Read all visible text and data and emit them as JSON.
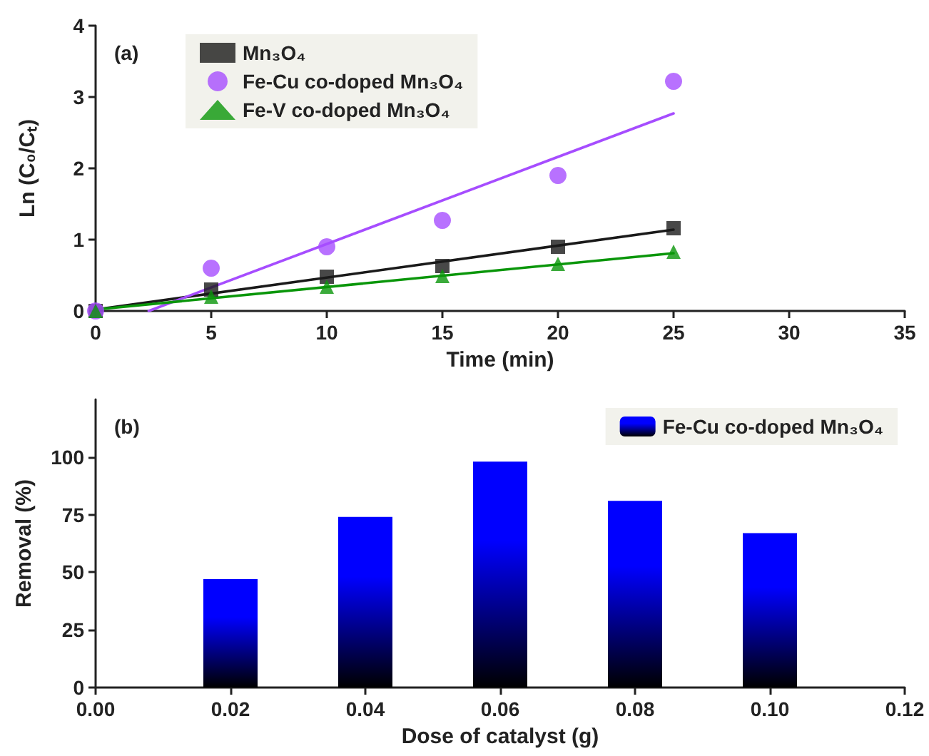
{
  "chart_data": [
    {
      "type": "scatter",
      "xlabel": "Time (min)",
      "ylabel": "Ln (C₀/Cₜ)",
      "annotations": [
        "(a)"
      ],
      "xlim": [
        0,
        35
      ],
      "xticks": [
        0,
        5,
        10,
        15,
        20,
        25,
        30,
        35
      ],
      "ylim": [
        0,
        4
      ],
      "yticks": [
        0,
        1,
        2,
        3,
        4
      ],
      "grid": false,
      "legend": "top left",
      "x": [
        0,
        5,
        10,
        15,
        20,
        25
      ],
      "series": [
        {
          "name": "Mn₃O₄",
          "color": "#1a1a1a",
          "marker": "square",
          "values": [
            0,
            0.3,
            0.48,
            0.63,
            0.9,
            1.16
          ]
        },
        {
          "name": "Fe-Cu co-doped Mn₃O₄",
          "color": "#a64dff",
          "marker": "circle",
          "values": [
            0,
            0.6,
            0.9,
            1.27,
            1.9,
            3.22
          ]
        },
        {
          "name": "Fe-V co-doped Mn₃O₄",
          "color": "#0a960a",
          "marker": "triangle",
          "values": [
            0,
            0.2,
            0.34,
            0.49,
            0.66,
            0.83
          ]
        },
        {
          "type": "line",
          "color": "#1a1a1a",
          "marker": "none",
          "x": [
            0,
            25
          ],
          "values": [
            0.02,
            1.14
          ]
        },
        {
          "type": "line",
          "color": "#a64dff",
          "marker": "none",
          "x": [
            2.3,
            25
          ],
          "values": [
            0,
            2.77
          ]
        },
        {
          "type": "line",
          "color": "#0a960a",
          "marker": "none",
          "x": [
            0,
            25
          ],
          "values": [
            0.02,
            0.81
          ]
        }
      ]
    },
    {
      "type": "bar",
      "xlabel": "Dose of catalyst (g)",
      "ylabel": "Removal (%)",
      "annotations": [
        "(b)"
      ],
      "xlim": [
        0,
        0.12
      ],
      "xticks": [
        {
          "value": 0,
          "label": "0.00"
        },
        {
          "value": 0.02,
          "label": "0.02"
        },
        {
          "value": 0.04,
          "label": "0.04"
        },
        {
          "value": 0.06,
          "label": "0.06"
        },
        {
          "value": 0.08,
          "label": "0.08"
        },
        {
          "value": 0.1,
          "label": "0.10"
        },
        {
          "value": 0.12,
          "label": "0.12"
        }
      ],
      "ylim": [
        0,
        125
      ],
      "yticks": [
        0,
        25,
        50,
        75,
        100
      ],
      "grid": false,
      "legend": "top right",
      "x": [
        0.02,
        0.04,
        0.06,
        0.08,
        0.1
      ],
      "series": [
        {
          "name": "Fe-Cu co-doped Mn₃O₄",
          "color": "#0000ff",
          "values": [
            47,
            74,
            98,
            81,
            67
          ]
        }
      ]
    }
  ]
}
